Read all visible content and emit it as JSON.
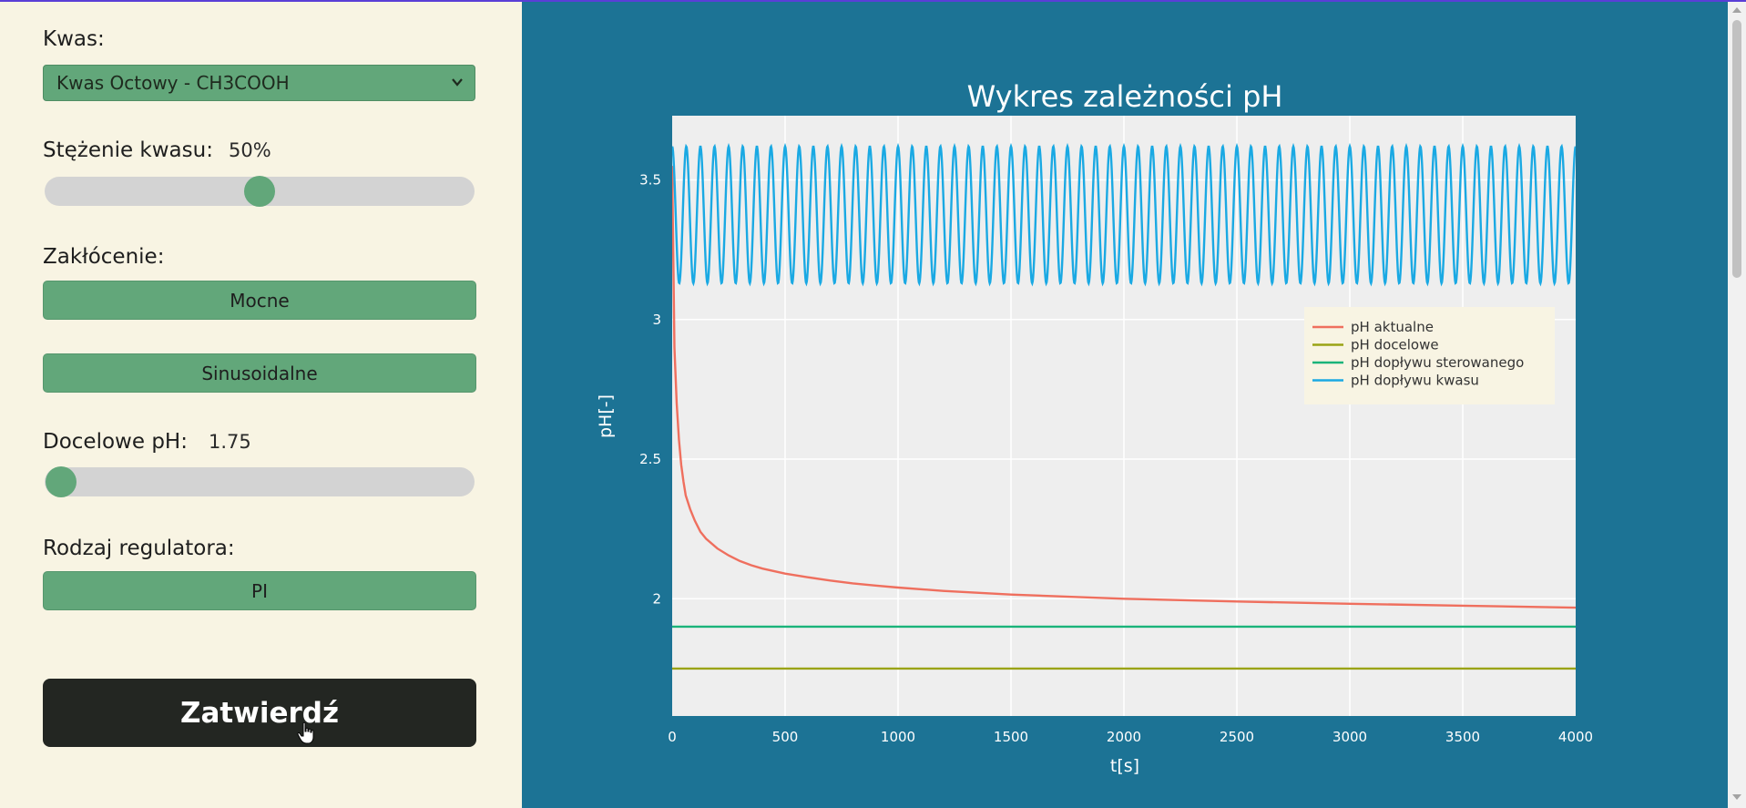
{
  "sidebar": {
    "acid_label": "Kwas:",
    "acid_select_value": "Kwas Octowy - CH3COOH",
    "concentration_label": "Stężenie kwasu:",
    "concentration_value": "50%",
    "concentration_fraction": 0.5,
    "disturbance_label": "Zakłócenie:",
    "disturbance_buttons": [
      "Mocne",
      "Sinusoidalne"
    ],
    "target_ph_label": "Docelowe pH:",
    "target_ph_value": "1.75",
    "target_ph_fraction": 0.0,
    "regulator_label": "Rodzaj regulatora:",
    "regulator_button": "PI",
    "submit_label": "Zatwierdź"
  },
  "colors": {
    "sidebar_bg": "#f8f4e3",
    "accent_green": "#62a77a",
    "chart_panel_bg": "#1c7395",
    "plot_bg": "#eeeeee",
    "submit_bg": "#232622"
  },
  "icons": {
    "select_arrow": "chevron-down-icon",
    "cursor": "hand-pointer-icon"
  },
  "chart_data": {
    "type": "line",
    "title": "Wykres zależności pH",
    "xlabel": "t[s]",
    "ylabel": "pH[-]",
    "xlim": [
      0,
      4000
    ],
    "ylim": [
      1.58,
      3.73
    ],
    "x_ticks": [
      0,
      500,
      1000,
      1500,
      2000,
      2500,
      3000,
      3500,
      4000
    ],
    "y_ticks": [
      2,
      2.5,
      3,
      3.5
    ],
    "y_tick_labels": [
      "2",
      "2.5",
      "3",
      "3.5"
    ],
    "grid": true,
    "legend_position": "top-right",
    "series": [
      {
        "name": "pH aktualne",
        "color": "#ef6f5e",
        "x": [
          0,
          10,
          20,
          30,
          40,
          50,
          60,
          80,
          100,
          125,
          150,
          200,
          250,
          300,
          350,
          400,
          500,
          600,
          700,
          800,
          900,
          1000,
          1200,
          1500,
          2000,
          2500,
          3000,
          3500,
          4000
        ],
        "y": [
          3.55,
          2.9,
          2.7,
          2.57,
          2.48,
          2.42,
          2.37,
          2.32,
          2.28,
          2.24,
          2.215,
          2.18,
          2.155,
          2.135,
          2.12,
          2.108,
          2.09,
          2.077,
          2.065,
          2.055,
          2.047,
          2.04,
          2.028,
          2.015,
          2.0,
          1.99,
          1.982,
          1.975,
          1.968
        ]
      },
      {
        "name": "pH docelowe",
        "color": "#9aa316",
        "x": [
          0,
          4000
        ],
        "y": [
          1.75,
          1.75
        ]
      },
      {
        "name": "pH dopływu sterowanego",
        "color": "#1ab37a",
        "x": [
          0,
          4000
        ],
        "y": [
          1.9,
          1.9
        ]
      },
      {
        "name": "pH dopływu kwasu",
        "color": "#1aa9e3",
        "mean": 3.375,
        "amplitude": 0.245,
        "period": 62.5,
        "x_range": [
          0,
          4000
        ]
      }
    ]
  }
}
